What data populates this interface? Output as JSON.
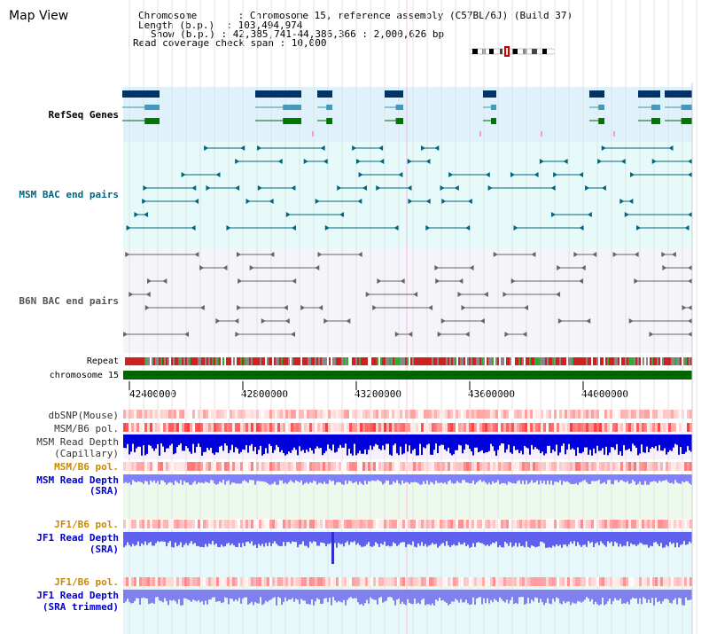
{
  "header": {
    "title": "Map View",
    "info_lines": [
      "Chromosome       : Chromosome 15, reference assembly (C57BL/6J) (Build 37)",
      "Length (b.p.)  : 103,494,974",
      "Show (b.p.) : 42,385,741-44,386,366 : 2,000,626 bp",
      "Read coverage check span : 10,000"
    ]
  },
  "tracks": {
    "refseq": {
      "label": "RefSeq Genes",
      "color": "#0000cc"
    },
    "msm_bac": {
      "label": "MSM BAC end pairs",
      "color": "#006680"
    },
    "b6n_bac": {
      "label": "B6N BAC end pairs",
      "color": "#555555"
    },
    "repeat": {
      "label": "Repeat"
    },
    "chromosome": {
      "label": "chromosome 15"
    },
    "dbsnp": {
      "label": "dbSNP(Mouse)"
    },
    "msm_b6_pol_1": {
      "label": "MSM/B6 pol."
    },
    "msm_read_depth_cap": {
      "label_1": "MSM Read Depth",
      "label_2": "(Capillary)"
    },
    "msm_b6_pol_2": {
      "label": "MSM/B6 pol.",
      "color": "#cc8800"
    },
    "msm_read_depth_sra": {
      "label_1": "MSM Read Depth",
      "label_2": "(SRA)",
      "color": "#0000cc"
    },
    "jf1_b6_pol_1": {
      "label": "JF1/B6 pol.",
      "color": "#cc8800"
    },
    "jf1_read_depth_sra": {
      "label_1": "JF1 Read Depth",
      "label_2": "(SRA)",
      "color": "#0000cc"
    },
    "jf1_b6_pol_2": {
      "label": "JF1/B6 pol.",
      "color": "#cc8800"
    },
    "jf1_read_depth_trim": {
      "label_1": "JF1 Read Depth",
      "label_2": "(SRA trimmed)",
      "color": "#0000cc"
    }
  },
  "axis": {
    "ticks": [
      "42400000",
      "42800000",
      "43200000",
      "43600000",
      "44000000"
    ]
  },
  "colors": {
    "refseq_bg": "#dff2fb",
    "msm_bg": "#e6fafa",
    "b6n_bg": "#f4f4fa",
    "chromosome_bar": "#006600",
    "depth_blue": "#0000dd",
    "depth_light": "#8080ff",
    "pol_red": "#e03030",
    "highlight": "#ff99cc"
  }
}
